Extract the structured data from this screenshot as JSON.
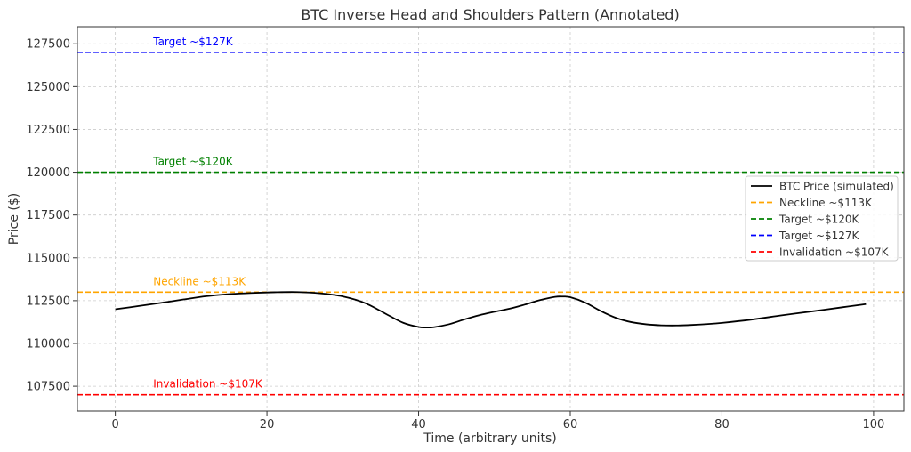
{
  "chart_data": {
    "type": "line",
    "title": "BTC Inverse Head and Shoulders Pattern (Annotated)",
    "xlabel": "Time (arbitrary units)",
    "ylabel": "Price ($)",
    "xlim": [
      -5,
      104
    ],
    "ylim": [
      106050,
      128500
    ],
    "xticks": [
      0,
      20,
      40,
      60,
      80,
      100
    ],
    "yticks": [
      107500,
      110000,
      112500,
      115000,
      117500,
      120000,
      122500,
      125000,
      127500
    ],
    "grid": true,
    "legend_position": "right",
    "series": [
      {
        "name": "BTC Price (simulated)",
        "color": "#000000",
        "style": "solid",
        "x": [
          0,
          3,
          6,
          9,
          12,
          15,
          18,
          21,
          24,
          27,
          30,
          33,
          36,
          38,
          40,
          41,
          42,
          44,
          46,
          48,
          50,
          52,
          54,
          56,
          58,
          59,
          60,
          62,
          64,
          66,
          68,
          70,
          72,
          74,
          76,
          78,
          80,
          84,
          88,
          92,
          96,
          99
        ],
        "y": [
          112000,
          112180,
          112370,
          112570,
          112760,
          112880,
          112950,
          112990,
          113000,
          112930,
          112750,
          112350,
          111650,
          111200,
          110960,
          110930,
          110950,
          111120,
          111400,
          111650,
          111850,
          112030,
          112270,
          112530,
          112720,
          112740,
          112700,
          112380,
          111900,
          111500,
          111250,
          111120,
          111060,
          111050,
          111080,
          111130,
          111200,
          111400,
          111650,
          111880,
          112120,
          112300
        ]
      }
    ],
    "hlines": [
      {
        "name": "Neckline ~$113K",
        "label": "Neckline ~$113K",
        "value": 113000,
        "color": "#ffa500"
      },
      {
        "name": "Target ~$120K",
        "label": "Target ~$120K",
        "value": 120000,
        "color": "#008000"
      },
      {
        "name": "Target ~$127K",
        "label": "Target ~$127K",
        "value": 127000,
        "color": "#0000ff"
      },
      {
        "name": "Invalidation ~$107K",
        "label": "Invalidation ~$107K",
        "value": 107000,
        "color": "#ff0000"
      }
    ],
    "annotation_x": 5
  }
}
